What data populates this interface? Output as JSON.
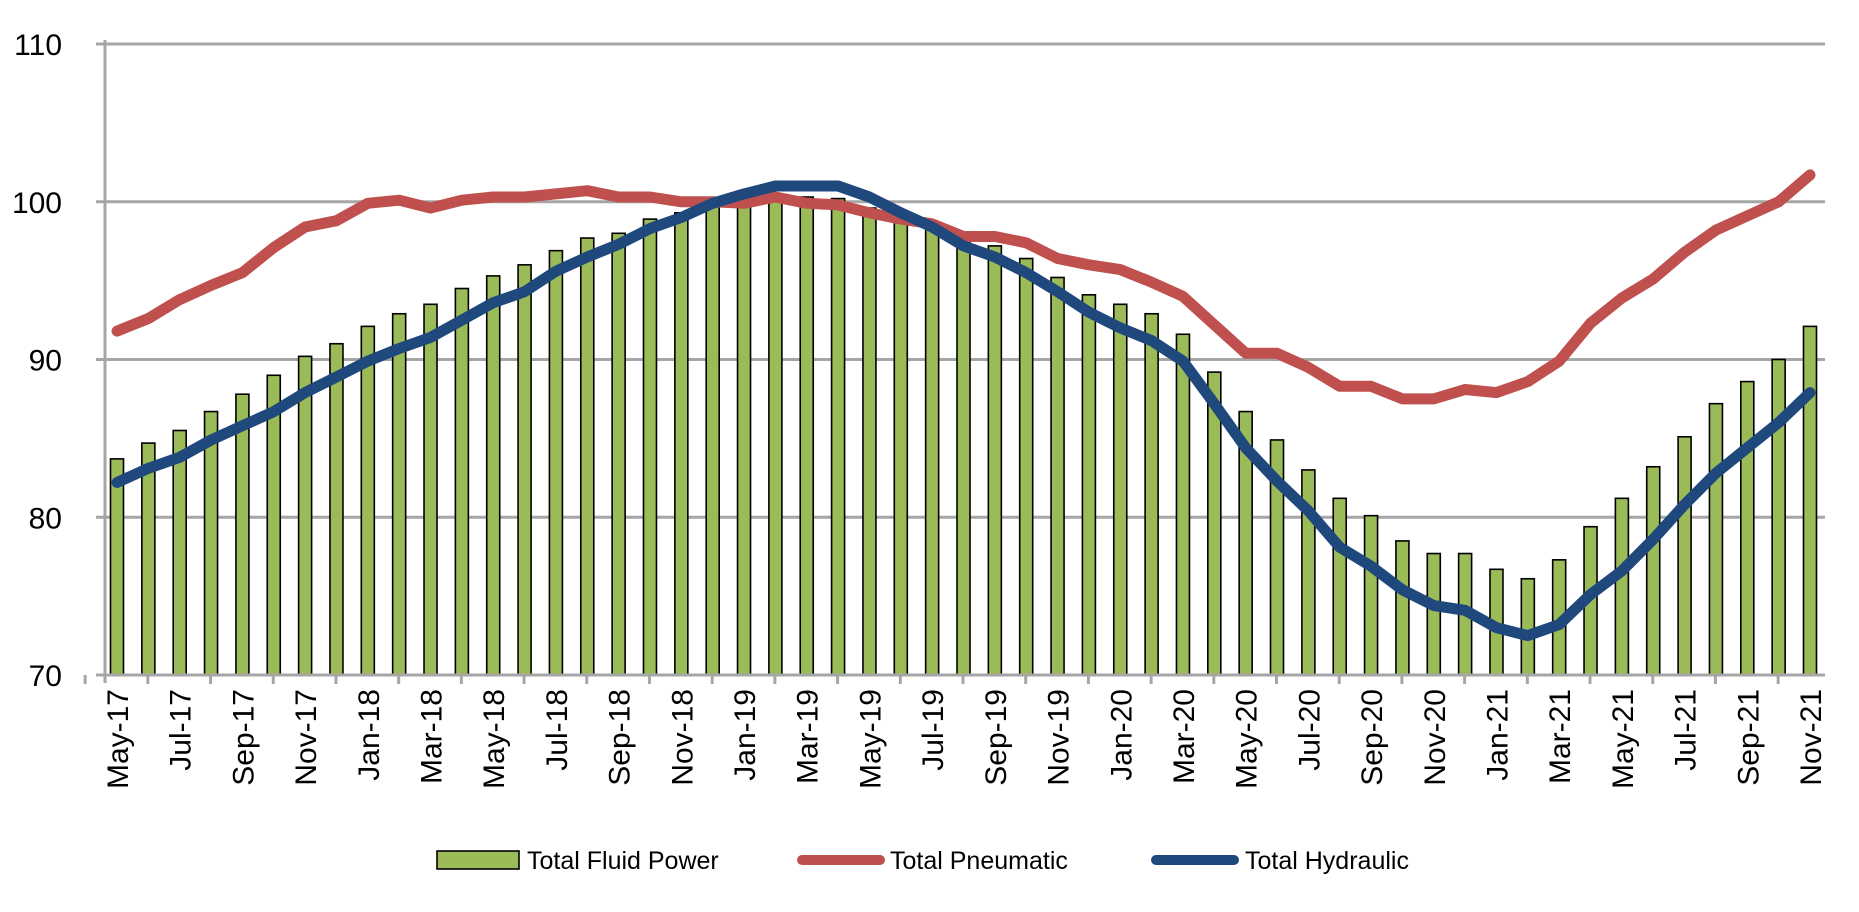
{
  "chart_data": {
    "type": "bar",
    "title": "",
    "xlabel": "",
    "ylabel": "",
    "ylim": [
      70,
      110
    ],
    "yticks": [
      70,
      80,
      90,
      100,
      110
    ],
    "grid": true,
    "legend_position": "bottom",
    "categories": [
      "May-17",
      "Jun-17",
      "Jul-17",
      "Aug-17",
      "Sep-17",
      "Oct-17",
      "Nov-17",
      "Dec-17",
      "Jan-18",
      "Feb-18",
      "Mar-18",
      "Apr-18",
      "May-18",
      "Jun-18",
      "Jul-18",
      "Aug-18",
      "Sep-18",
      "Oct-18",
      "Nov-18",
      "Dec-18",
      "Jan-19",
      "Feb-19",
      "Mar-19",
      "Apr-19",
      "May-19",
      "Jun-19",
      "Jul-19",
      "Aug-19",
      "Sep-19",
      "Oct-19",
      "Nov-19",
      "Dec-19",
      "Jan-20",
      "Feb-20",
      "Mar-20",
      "Apr-20",
      "May-20",
      "Jun-20",
      "Jul-20",
      "Aug-20",
      "Sep-20",
      "Oct-20",
      "Nov-20",
      "Dec-20",
      "Jan-21",
      "Feb-21",
      "Mar-21",
      "Apr-21",
      "May-21",
      "Jun-21",
      "Jul-21",
      "Aug-21",
      "Sep-21",
      "Oct-21",
      "Nov-21"
    ],
    "x_tick_labels": [
      "May-17",
      "Jul-17",
      "Sep-17",
      "Nov-17",
      "Jan-18",
      "Mar-18",
      "May-18",
      "Jul-18",
      "Sep-18",
      "Nov-18",
      "Jan-19",
      "Mar-19",
      "May-19",
      "Jul-19",
      "Sep-19",
      "Nov-19",
      "Jan-20",
      "Mar-20",
      "May-20",
      "Jul-20",
      "Sep-20",
      "Nov-20",
      "Jan-21",
      "Mar-21",
      "May-21",
      "Jul-21",
      "Sep-21",
      "Nov-21"
    ],
    "series": [
      {
        "name": "Total Fluid Power",
        "type": "bar",
        "color": "#9bbb59",
        "edge_color": "#000000",
        "values": [
          83.7,
          84.7,
          85.5,
          86.7,
          87.8,
          89.0,
          90.2,
          91.0,
          92.1,
          92.9,
          93.5,
          94.5,
          95.3,
          96.0,
          96.9,
          97.7,
          98.0,
          98.9,
          99.3,
          99.9,
          100.1,
          100.3,
          100.3,
          100.2,
          99.6,
          98.9,
          98.3,
          97.4,
          97.2,
          96.4,
          95.2,
          94.1,
          93.5,
          92.9,
          91.6,
          89.2,
          86.7,
          84.9,
          83.0,
          81.2,
          80.1,
          78.5,
          77.7,
          77.7,
          76.7,
          76.1,
          77.3,
          79.4,
          81.2,
          83.2,
          85.1,
          87.2,
          88.6,
          90.0,
          92.1
        ]
      },
      {
        "name": "Total Pneumatic",
        "type": "line",
        "color": "#c0504d",
        "values": [
          91.8,
          92.6,
          93.8,
          94.7,
          95.5,
          97.1,
          98.4,
          98.8,
          99.9,
          100.1,
          99.6,
          100.1,
          100.3,
          100.3,
          100.5,
          100.7,
          100.3,
          100.3,
          100.0,
          100.0,
          99.9,
          100.3,
          99.9,
          99.8,
          99.3,
          98.9,
          98.6,
          97.8,
          97.8,
          97.4,
          96.4,
          96.0,
          95.7,
          94.9,
          94.0,
          92.2,
          90.4,
          90.4,
          89.5,
          88.3,
          88.3,
          87.5,
          87.5,
          88.1,
          87.9,
          88.6,
          89.9,
          92.3,
          93.9,
          95.1,
          96.8,
          98.2,
          99.1,
          100.0,
          101.7
        ]
      },
      {
        "name": "Total Hydraulic",
        "type": "line",
        "color": "#1f497d",
        "values": [
          82.2,
          83.1,
          83.8,
          84.9,
          85.8,
          86.7,
          87.9,
          88.9,
          89.9,
          90.7,
          91.4,
          92.5,
          93.6,
          94.3,
          95.6,
          96.5,
          97.3,
          98.3,
          99.0,
          99.9,
          100.5,
          101.0,
          101.0,
          101.0,
          100.3,
          99.3,
          98.4,
          97.2,
          96.5,
          95.5,
          94.3,
          93.0,
          92.0,
          91.2,
          89.9,
          87.2,
          84.4,
          82.3,
          80.4,
          78.1,
          76.9,
          75.4,
          74.4,
          74.1,
          73.0,
          72.5,
          73.2,
          75.1,
          76.6,
          78.6,
          80.8,
          82.8,
          84.4,
          86.0,
          87.9
        ]
      }
    ]
  }
}
